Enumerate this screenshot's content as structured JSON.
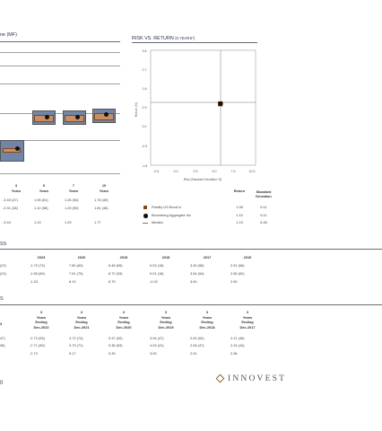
{
  "left_chart": {
    "title_fragment": "ne (MF)",
    "period_labels": [
      {
        "num": "3",
        "unit": "Years"
      },
      {
        "num": "5",
        "unit": "Years"
      },
      {
        "num": "7",
        "unit": "Years"
      },
      {
        "num": "10",
        "unit": "Years"
      }
    ],
    "rows": [
      [
        "-3.40  (47)",
        "1.06  (61)",
        "1.26  (54)",
        "1.78  (49)"
      ],
      [
        "-3.31  (38)",
        "1.10  (58)",
        "1.29  (50)",
        "1.81  (46)"
      ],
      [
        "-3.44",
        "1.19",
        "1.29",
        "1.77"
      ]
    ]
  },
  "risk_return": {
    "title": "RISK VS. RETURN",
    "subtitle": "(5 YEARS*)",
    "y_axis_label": "Return (%)",
    "x_axis_label": "Risk (Standard Deviation %)",
    "y_ticks": [
      "3.6",
      "2.7",
      "1.8",
      "0.9",
      "0.0",
      "-0.9",
      "-1.8"
    ],
    "x_ticks": [
      "-2.5",
      "0.0",
      "2.5",
      "5.0",
      "7.5",
      "10.0"
    ],
    "legend_header_return": "Return",
    "legend_header_std": "Standard Deviation",
    "legend": [
      {
        "symbol": "square",
        "color": "#8b4513",
        "name": "Fidelity US Bond Ix",
        "return": "1.06",
        "std": "6.11"
      },
      {
        "symbol": "circle",
        "color": "#111111",
        "name": "Bloomberg Aggregate Idx",
        "return": "1.10",
        "std": "6.11"
      },
      {
        "symbol": "line",
        "color": "#777777",
        "name": "Median",
        "return": "1.19",
        "std": "6.46"
      }
    ]
  },
  "calendar": {
    "title_fragment": "SS",
    "years": [
      "2023",
      "2020",
      "2019",
      "2018",
      "2017",
      "2016"
    ],
    "rows": [
      {
        "lead": "(22)",
        "cells": [
          "-1.79  (73)",
          "7.80  (63)",
          "8.48  (65)",
          "0.03  (18)",
          "3.49  (56)",
          "2.51  (66)"
        ]
      },
      {
        "lead": "(22)",
        "cells": [
          "-1.55  (69)",
          "7.51  (75)",
          "8.72  (53)",
          "0.01  (18)",
          "3.54  (54)",
          "2.65  (62)"
        ]
      },
      {
        "lead": "",
        "cells": [
          "-1.33",
          "8.10",
          "8.79",
          "-0.02",
          "3.60",
          "2.90"
        ]
      }
    ]
  },
  "rolling": {
    "title_fragment": "S",
    "headers": [
      {
        "num": "3",
        "years": "Years",
        "ending": "Ending",
        "date": "Dec-2022"
      },
      {
        "num": "3",
        "years": "Years",
        "ending": "Ending",
        "date": "Dec-2021"
      },
      {
        "num": "3",
        "years": "Years",
        "ending": "Ending",
        "date": "Dec-2020"
      },
      {
        "num": "3",
        "years": "Years",
        "ending": "Ending",
        "date": "Dec-2019"
      },
      {
        "num": "3",
        "years": "Years",
        "ending": "Ending",
        "date": "Dec-2018"
      },
      {
        "num": "3",
        "years": "Years",
        "ending": "Ending",
        "date": "Dec-2017"
      }
    ],
    "lead_header": "3",
    "rows": [
      {
        "lead": "47)",
        "cells": [
          "-2.72  (53)",
          "4.72  (74)",
          "5.37  (52)",
          "3.94  (47)",
          "2.00  (52)",
          "2.21  (46)"
        ]
      },
      {
        "lead": "38)",
        "cells": [
          "-2.71  (50)",
          "4.79  (71)",
          "5.36  (53)",
          "4.03  (41)",
          "2.06  (47)",
          "2.24  (44)"
        ]
      },
      {
        "lead": "",
        "cells": [
          "-2.72",
          "5.17",
          "5.39",
          "3.93",
          "2.01",
          "2.36"
        ]
      }
    ]
  },
  "footer": {
    "page_number": "0",
    "brand": "INNOVEST"
  }
}
